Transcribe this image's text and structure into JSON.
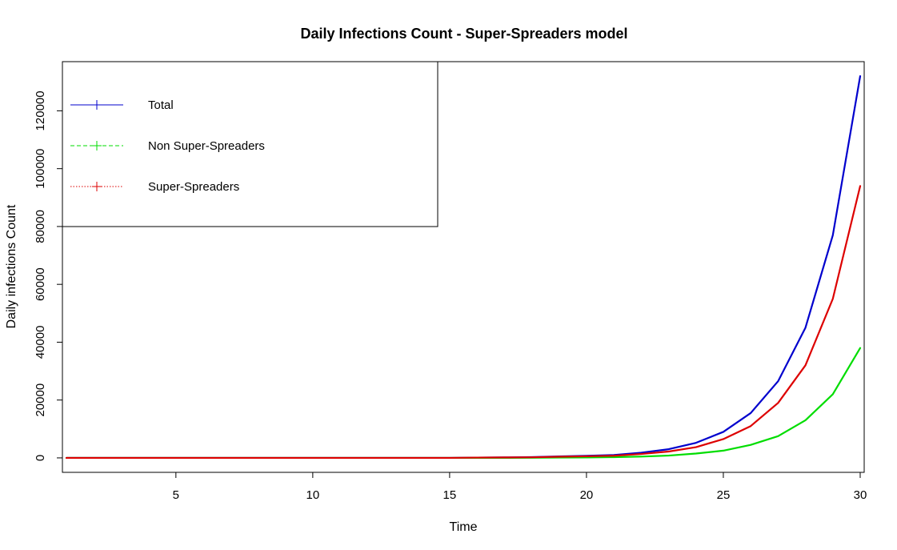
{
  "chart_data": {
    "type": "line",
    "title": "Daily Infections Count - Super-Spreaders model",
    "xlabel": "Time",
    "ylabel": "Daily infections Count",
    "xlim": [
      1,
      30
    ],
    "ylim": [
      -5000,
      137000
    ],
    "x_ticks": [
      5,
      10,
      15,
      20,
      25,
      30
    ],
    "y_ticks": [
      0,
      20000,
      40000,
      60000,
      80000,
      100000,
      120000
    ],
    "grid": false,
    "legend_position": "top-left",
    "x": [
      1,
      2,
      3,
      4,
      5,
      6,
      7,
      8,
      9,
      10,
      11,
      12,
      13,
      14,
      15,
      16,
      17,
      18,
      19,
      20,
      21,
      22,
      23,
      24,
      25,
      26,
      27,
      28,
      29,
      30
    ],
    "series": [
      {
        "name": "Total",
        "color": "#0000cd",
        "dash": "solid",
        "values": [
          0,
          0,
          0,
          0,
          0,
          0,
          0,
          0,
          0,
          0,
          0,
          0,
          0,
          0,
          0,
          100,
          150,
          250,
          500,
          700,
          1000,
          1800,
          3000,
          5200,
          9000,
          15500,
          26500,
          45000,
          77000,
          132000
        ]
      },
      {
        "name": "Non Super-Spreaders",
        "color": "#00dd00",
        "dash": "dashed",
        "values": [
          0,
          0,
          0,
          0,
          0,
          0,
          0,
          0,
          0,
          0,
          0,
          0,
          0,
          0,
          0,
          0,
          0,
          50,
          100,
          150,
          250,
          450,
          800,
          1500,
          2500,
          4500,
          7500,
          13000,
          22000,
          38000
        ]
      },
      {
        "name": "Super-Spreaders",
        "color": "#dd0000",
        "dash": "dotted",
        "values": [
          0,
          0,
          0,
          0,
          0,
          0,
          0,
          0,
          0,
          0,
          0,
          0,
          0,
          0,
          0,
          100,
          150,
          200,
          400,
          550,
          750,
          1350,
          2200,
          3700,
          6500,
          11000,
          19000,
          32000,
          55000,
          94000
        ]
      }
    ]
  }
}
